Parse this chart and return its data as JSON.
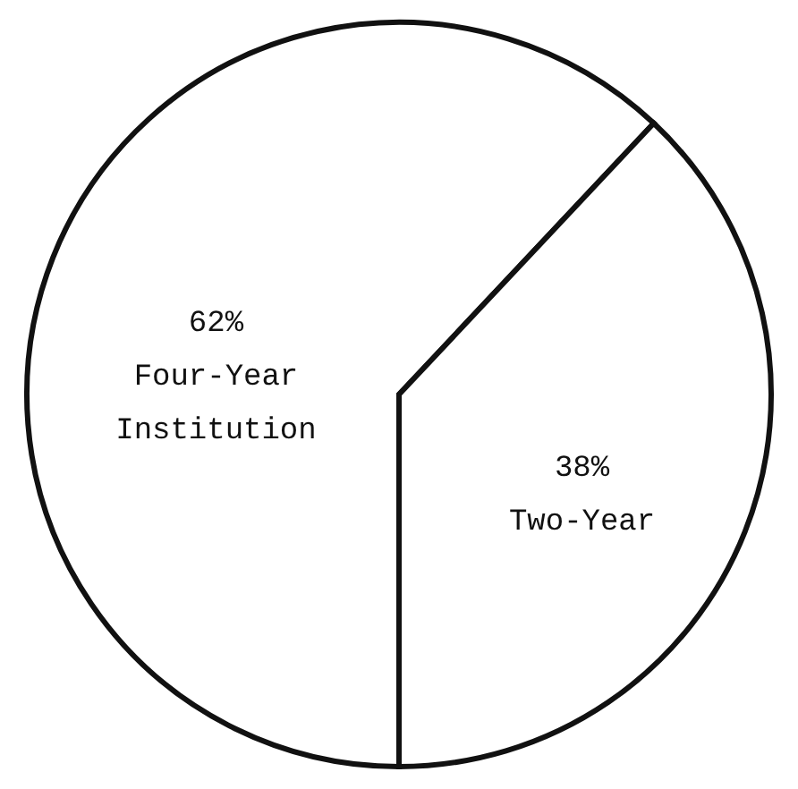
{
  "chart_data": {
    "type": "pie",
    "categories": [
      "Four-Year Institution",
      "Two-Year"
    ],
    "values": [
      62,
      38
    ],
    "value_labels": [
      "62%",
      "38%"
    ],
    "colors": [
      "#ffffff",
      "#ffffff"
    ],
    "legend": false
  }
}
